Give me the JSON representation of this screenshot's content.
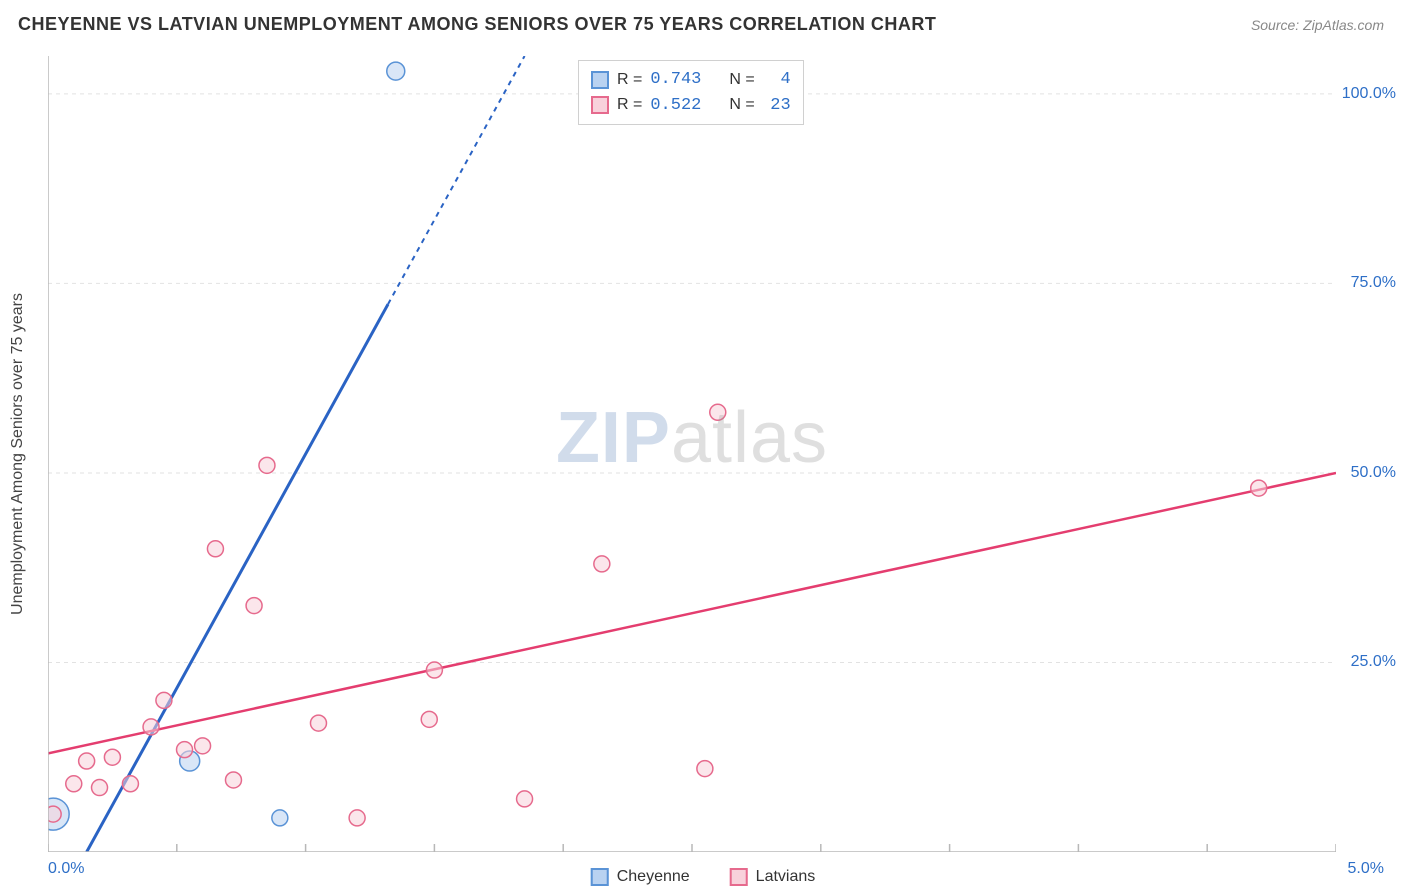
{
  "header": {
    "title": "CHEYENNE VS LATVIAN UNEMPLOYMENT AMONG SENIORS OVER 75 YEARS CORRELATION CHART",
    "source": "Source: ZipAtlas.com"
  },
  "y_axis_label": "Unemployment Among Seniors over 75 years",
  "watermark": {
    "part1": "ZIP",
    "part2": "atlas"
  },
  "chart": {
    "type": "scatter-with-regression",
    "xlim": [
      0.0,
      5.0
    ],
    "ylim": [
      0.0,
      105.0
    ],
    "x_ticks_minor": [
      0.0,
      0.5,
      1.0,
      1.5,
      2.0,
      2.5,
      3.0,
      3.5,
      4.0,
      4.5,
      5.0
    ],
    "x_tick_labels": {
      "left": "0.0%",
      "right": "5.0%"
    },
    "y_ticks": [
      25.0,
      50.0,
      75.0,
      100.0
    ],
    "y_tick_labels": [
      "25.0%",
      "50.0%",
      "75.0%",
      "100.0%"
    ],
    "grid_color": "#e2e2e2",
    "grid_dash": "4,4",
    "axis_color": "#b8b8b8",
    "background_color": "#ffffff",
    "series": [
      {
        "name": "Cheyenne",
        "color_fill": "#b9d2f1",
        "color_stroke": "#5a93d6",
        "line_color": "#2a63c4",
        "line_dash_partial": "5,5",
        "marker_r": 8,
        "R": "0.743",
        "N": "4",
        "points": [
          {
            "x": 0.02,
            "y": 5.0,
            "r": 16
          },
          {
            "x": 0.55,
            "y": 12.0,
            "r": 10
          },
          {
            "x": 0.9,
            "y": 4.5,
            "r": 8
          },
          {
            "x": 1.35,
            "y": 103.0,
            "r": 9
          }
        ],
        "reg_line": {
          "x1": 0.15,
          "y1": 0.0,
          "x2": 1.85,
          "y2": 105.0,
          "solid_to_x": 1.32
        }
      },
      {
        "name": "Latvians",
        "color_fill": "#f8d1db",
        "color_stroke": "#e66a8d",
        "line_color": "#e43d6f",
        "marker_r": 8,
        "R": "0.522",
        "N": "23",
        "points": [
          {
            "x": 0.02,
            "y": 5.0
          },
          {
            "x": 0.1,
            "y": 9.0
          },
          {
            "x": 0.15,
            "y": 12.0
          },
          {
            "x": 0.2,
            "y": 8.5
          },
          {
            "x": 0.25,
            "y": 12.5
          },
          {
            "x": 0.32,
            "y": 9.0
          },
          {
            "x": 0.4,
            "y": 16.5
          },
          {
            "x": 0.45,
            "y": 20.0
          },
          {
            "x": 0.53,
            "y": 13.5
          },
          {
            "x": 0.6,
            "y": 14.0
          },
          {
            "x": 0.65,
            "y": 40.0
          },
          {
            "x": 0.72,
            "y": 9.5
          },
          {
            "x": 0.8,
            "y": 32.5
          },
          {
            "x": 0.85,
            "y": 51.0
          },
          {
            "x": 1.05,
            "y": 17.0
          },
          {
            "x": 1.2,
            "y": 4.5
          },
          {
            "x": 1.48,
            "y": 17.5
          },
          {
            "x": 1.5,
            "y": 24.0
          },
          {
            "x": 1.85,
            "y": 7.0
          },
          {
            "x": 2.15,
            "y": 38.0
          },
          {
            "x": 2.55,
            "y": 11.0
          },
          {
            "x": 2.6,
            "y": 58.0
          },
          {
            "x": 4.7,
            "y": 48.0
          }
        ],
        "reg_line": {
          "x1": 0.0,
          "y1": 13.0,
          "x2": 5.0,
          "y2": 50.0
        }
      }
    ]
  },
  "legend_box": {
    "rows": [
      {
        "sq_fill": "#b9d2f1",
        "sq_stroke": "#5a93d6",
        "R_label": "R =",
        "R": "0.743",
        "N_label": "N =",
        "N": "4"
      },
      {
        "sq_fill": "#f8d1db",
        "sq_stroke": "#e66a8d",
        "R_label": "R =",
        "R": "0.522",
        "N_label": "N =",
        "N": "23"
      }
    ]
  },
  "bottom_legend": {
    "items": [
      {
        "sq_fill": "#b9d2f1",
        "sq_stroke": "#5a93d6",
        "label": "Cheyenne"
      },
      {
        "sq_fill": "#f8d1db",
        "sq_stroke": "#e66a8d",
        "label": "Latvians"
      }
    ]
  }
}
